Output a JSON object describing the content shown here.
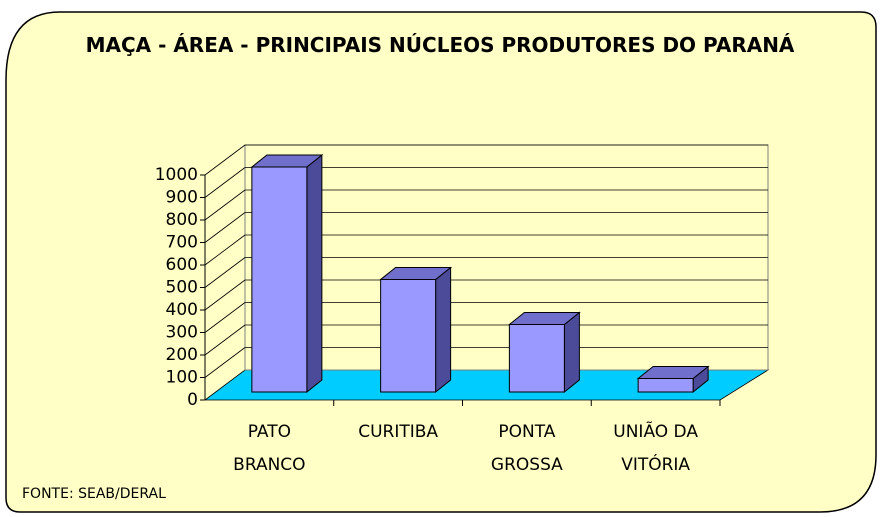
{
  "chart_data": {
    "type": "bar",
    "title": "MAÇA - ÁREA - PRINCIPAIS NÚCLEOS PRODUTORES DO PARANÁ",
    "categories": [
      "PATO BRANCO",
      "CURITIBA",
      "PONTA GROSSA",
      "UNIÃO DA VITÓRIA"
    ],
    "values": [
      1000,
      500,
      300,
      60
    ],
    "color": "#9999ff",
    "ylim": [
      0,
      1000
    ],
    "yticks": [
      0,
      100,
      200,
      300,
      400,
      500,
      600,
      700,
      800,
      900,
      1000
    ],
    "grid": true,
    "source": "FONTE: SEAB/DERAL"
  }
}
